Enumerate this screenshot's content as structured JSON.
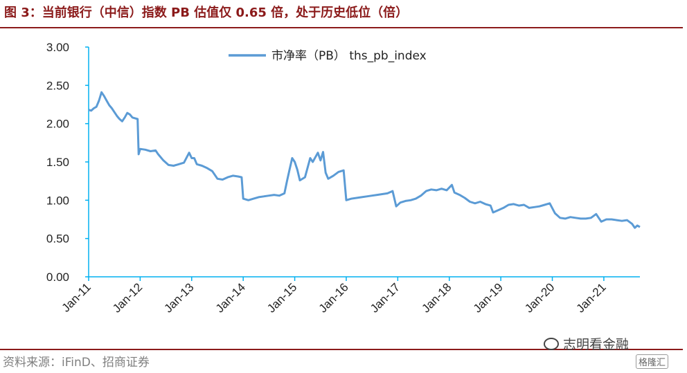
{
  "header": {
    "title": "图 3：当前银行（中信）指数 PB 估值仅 0.65 倍，处于历史低位（倍）"
  },
  "footer": {
    "source": "资料来源：iFinD、招商证券",
    "watermark": "志明看金融",
    "corner_logo": "格隆汇"
  },
  "colors": {
    "line": "#5B9BD5",
    "axis": "#00B0F0",
    "title": "#8B1A1A"
  },
  "chart_data": {
    "type": "line",
    "title": "图 3：当前银行（中信）指数 PB 估值仅 0.65 倍，处于历史低位（倍）",
    "xlabel": "",
    "ylabel": "",
    "legend": {
      "label": "市净率（PB） ths_pb_index",
      "placement": "top-center"
    },
    "ylim": [
      0,
      3.0
    ],
    "yticks": [
      "0.00",
      "0.50",
      "1.00",
      "1.50",
      "2.00",
      "2.50",
      "3.00"
    ],
    "xlim": [
      2011.0,
      2021.7
    ],
    "xticks": [
      "Jan-11",
      "Jan-12",
      "Jan-13",
      "Jan-14",
      "Jan-15",
      "Jan-16",
      "Jan-17",
      "Jan-18",
      "Jan-19",
      "Jan-20",
      "Jan-21"
    ],
    "grid": false,
    "series": [
      {
        "name": "市净率（PB） ths_pb_index",
        "points": [
          [
            2011.0,
            2.18
          ],
          [
            2011.05,
            2.17
          ],
          [
            2011.1,
            2.2
          ],
          [
            2011.15,
            2.22
          ],
          [
            2011.2,
            2.3
          ],
          [
            2011.25,
            2.41
          ],
          [
            2011.3,
            2.36
          ],
          [
            2011.35,
            2.3
          ],
          [
            2011.4,
            2.24
          ],
          [
            2011.45,
            2.2
          ],
          [
            2011.5,
            2.15
          ],
          [
            2011.55,
            2.1
          ],
          [
            2011.6,
            2.06
          ],
          [
            2011.65,
            2.03
          ],
          [
            2011.7,
            2.08
          ],
          [
            2011.75,
            2.14
          ],
          [
            2011.8,
            2.12
          ],
          [
            2011.85,
            2.08
          ],
          [
            2011.9,
            2.07
          ],
          [
            2011.95,
            2.06
          ],
          [
            2011.97,
            1.6
          ],
          [
            2012.0,
            1.67
          ],
          [
            2012.1,
            1.66
          ],
          [
            2012.2,
            1.64
          ],
          [
            2012.3,
            1.65
          ],
          [
            2012.35,
            1.6
          ],
          [
            2012.45,
            1.52
          ],
          [
            2012.55,
            1.46
          ],
          [
            2012.65,
            1.45
          ],
          [
            2012.75,
            1.47
          ],
          [
            2012.85,
            1.49
          ],
          [
            2012.95,
            1.62
          ],
          [
            2013.0,
            1.55
          ],
          [
            2013.05,
            1.55
          ],
          [
            2013.1,
            1.47
          ],
          [
            2013.2,
            1.45
          ],
          [
            2013.3,
            1.42
          ],
          [
            2013.4,
            1.38
          ],
          [
            2013.5,
            1.28
          ],
          [
            2013.6,
            1.27
          ],
          [
            2013.7,
            1.3
          ],
          [
            2013.8,
            1.32
          ],
          [
            2013.9,
            1.31
          ],
          [
            2013.97,
            1.3
          ],
          [
            2014.0,
            1.02
          ],
          [
            2014.1,
            1.0
          ],
          [
            2014.2,
            1.02
          ],
          [
            2014.3,
            1.04
          ],
          [
            2014.4,
            1.05
          ],
          [
            2014.5,
            1.06
          ],
          [
            2014.6,
            1.07
          ],
          [
            2014.7,
            1.06
          ],
          [
            2014.8,
            1.09
          ],
          [
            2014.85,
            1.25
          ],
          [
            2014.9,
            1.4
          ],
          [
            2014.95,
            1.55
          ],
          [
            2015.0,
            1.5
          ],
          [
            2015.05,
            1.4
          ],
          [
            2015.1,
            1.26
          ],
          [
            2015.2,
            1.3
          ],
          [
            2015.3,
            1.55
          ],
          [
            2015.35,
            1.5
          ],
          [
            2015.45,
            1.62
          ],
          [
            2015.5,
            1.52
          ],
          [
            2015.55,
            1.63
          ],
          [
            2015.6,
            1.36
          ],
          [
            2015.65,
            1.28
          ],
          [
            2015.75,
            1.32
          ],
          [
            2015.85,
            1.37
          ],
          [
            2015.95,
            1.39
          ],
          [
            2016.0,
            1.0
          ],
          [
            2016.1,
            1.02
          ],
          [
            2016.2,
            1.03
          ],
          [
            2016.3,
            1.04
          ],
          [
            2016.4,
            1.05
          ],
          [
            2016.5,
            1.06
          ],
          [
            2016.6,
            1.07
          ],
          [
            2016.7,
            1.08
          ],
          [
            2016.8,
            1.09
          ],
          [
            2016.9,
            1.12
          ],
          [
            2016.97,
            0.92
          ],
          [
            2017.05,
            0.97
          ],
          [
            2017.15,
            0.99
          ],
          [
            2017.25,
            1.0
          ],
          [
            2017.35,
            1.02
          ],
          [
            2017.45,
            1.06
          ],
          [
            2017.55,
            1.12
          ],
          [
            2017.65,
            1.14
          ],
          [
            2017.75,
            1.13
          ],
          [
            2017.85,
            1.15
          ],
          [
            2017.95,
            1.13
          ],
          [
            2018.05,
            1.2
          ],
          [
            2018.1,
            1.1
          ],
          [
            2018.2,
            1.07
          ],
          [
            2018.3,
            1.03
          ],
          [
            2018.4,
            0.98
          ],
          [
            2018.5,
            0.96
          ],
          [
            2018.6,
            0.98
          ],
          [
            2018.7,
            0.95
          ],
          [
            2018.8,
            0.93
          ],
          [
            2018.85,
            0.84
          ],
          [
            2018.95,
            0.87
          ],
          [
            2019.05,
            0.9
          ],
          [
            2019.15,
            0.94
          ],
          [
            2019.25,
            0.95
          ],
          [
            2019.35,
            0.93
          ],
          [
            2019.45,
            0.94
          ],
          [
            2019.55,
            0.9
          ],
          [
            2019.65,
            0.91
          ],
          [
            2019.75,
            0.92
          ],
          [
            2019.85,
            0.94
          ],
          [
            2019.95,
            0.96
          ],
          [
            2020.05,
            0.83
          ],
          [
            2020.15,
            0.77
          ],
          [
            2020.25,
            0.76
          ],
          [
            2020.35,
            0.78
          ],
          [
            2020.45,
            0.77
          ],
          [
            2020.55,
            0.76
          ],
          [
            2020.65,
            0.76
          ],
          [
            2020.75,
            0.77
          ],
          [
            2020.85,
            0.82
          ],
          [
            2020.95,
            0.72
          ],
          [
            2021.05,
            0.75
          ],
          [
            2021.15,
            0.75
          ],
          [
            2021.25,
            0.74
          ],
          [
            2021.35,
            0.73
          ],
          [
            2021.45,
            0.74
          ],
          [
            2021.55,
            0.69
          ],
          [
            2021.6,
            0.64
          ],
          [
            2021.65,
            0.67
          ],
          [
            2021.7,
            0.65
          ]
        ]
      }
    ]
  }
}
